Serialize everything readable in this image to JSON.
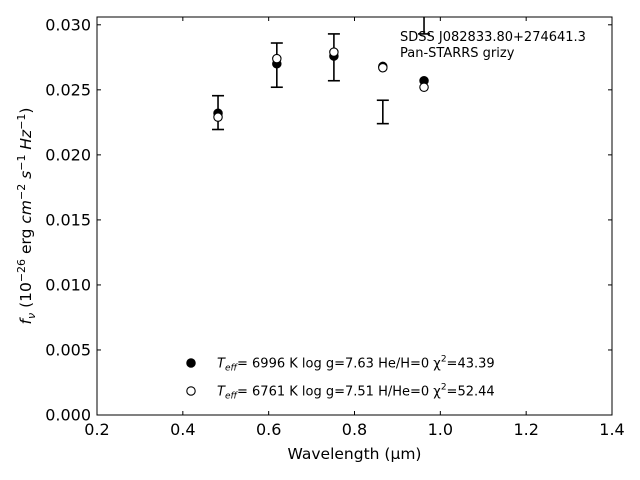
{
  "chart_data": {
    "type": "scatter",
    "annotation": [
      "SDSS J082833.80+274641.3",
      "Pan-STARRS grizy"
    ],
    "xlabel": "Wavelength (μm)",
    "ylabel": "f_ν (10^-26 erg cm^-2 s^-1 Hz^-1)",
    "xlim": [
      0.2,
      1.4
    ],
    "ylim": [
      0.0,
      0.0306
    ],
    "x_ticks": [
      "0.2",
      "0.4",
      "0.6",
      "0.8",
      "1.0",
      "1.2",
      "1.4"
    ],
    "y_ticks": [
      "0.000",
      "0.005",
      "0.010",
      "0.015",
      "0.020",
      "0.025",
      "0.030"
    ],
    "grid": false,
    "legend_position": "lower-center",
    "observed": {
      "x": [
        0.482,
        0.619,
        0.752,
        0.866,
        0.962
      ],
      "y": [
        0.02325,
        0.0269,
        0.0275,
        0.0233,
        0.0302
      ],
      "yerr": [
        0.0013,
        0.0017,
        0.0018,
        0.0009,
        0.0009
      ]
    },
    "series": [
      {
        "name": "He/H=0",
        "label_parts": [
          "T",
          "eff",
          "=  6996 K  log g=7.63  He/H=0  χ",
          "2",
          "=43.39"
        ],
        "marker": "filled-circle",
        "x": [
          0.482,
          0.619,
          0.752,
          0.866,
          0.962
        ],
        "y": [
          0.0232,
          0.027,
          0.0276,
          0.0268,
          0.0257
        ]
      },
      {
        "name": "H/He=0",
        "label_parts": [
          "T",
          "eff",
          "=  6761 K  log g=7.51  H/He=0  χ",
          "2",
          "=52.44"
        ],
        "marker": "open-circle",
        "x": [
          0.482,
          0.619,
          0.752,
          0.866,
          0.962
        ],
        "y": [
          0.0229,
          0.0274,
          0.0279,
          0.0267,
          0.0252
        ]
      }
    ]
  }
}
